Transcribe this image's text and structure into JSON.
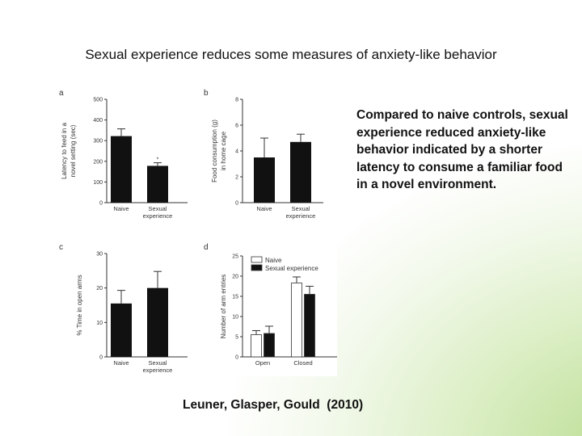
{
  "slide": {
    "title": "Sexual experience reduces some measures of anxiety-like behavior",
    "caption": "Compared to naive controls, sexual experience reduced anxiety-like behavior indicated by a shorter latency to consume a familiar food in a novel environment.",
    "citation": "Leuner, Glasper, Gould  (2010)"
  },
  "colors": {
    "bar": "#111111",
    "axis": "#333333",
    "open_bar": "#ffffff"
  },
  "chart_data": [
    {
      "panel": "a",
      "type": "bar",
      "ylabel": [
        "Latency to feed in a",
        "novel setting (sec)"
      ],
      "ylim": [
        0,
        500
      ],
      "yticks": [
        0,
        100,
        200,
        300,
        400,
        500
      ],
      "categories": [
        [
          "Naive"
        ],
        [
          "Sexual",
          "experience"
        ]
      ],
      "values": [
        322,
        178
      ],
      "errors": [
        35,
        15
      ],
      "annotations": [
        "",
        "*"
      ]
    },
    {
      "panel": "b",
      "type": "bar",
      "ylabel": [
        "Food consumption (g)",
        "in home cage"
      ],
      "ylim": [
        0,
        8
      ],
      "yticks": [
        0,
        2,
        4,
        6,
        8
      ],
      "categories": [
        [
          "Naive"
        ],
        [
          "Sexual",
          "experience"
        ]
      ],
      "values": [
        3.5,
        4.7
      ],
      "errors": [
        1.5,
        0.6
      ],
      "annotations": [
        "",
        ""
      ]
    },
    {
      "panel": "c",
      "type": "bar",
      "ylabel": [
        "% Time in open arms"
      ],
      "ylim": [
        0,
        30
      ],
      "yticks": [
        0,
        10,
        20,
        30
      ],
      "categories": [
        [
          "Naive"
        ],
        [
          "Sexual",
          "experience"
        ]
      ],
      "values": [
        15.5,
        20
      ],
      "errors": [
        3.8,
        4.8
      ],
      "annotations": [
        "",
        ""
      ]
    },
    {
      "panel": "d",
      "type": "bar",
      "ylabel": [
        "Number of arm entries"
      ],
      "ylim": [
        0,
        25
      ],
      "yticks": [
        0,
        5,
        10,
        15,
        20,
        25
      ],
      "categories": [
        [
          "Open"
        ],
        [
          "Closed"
        ]
      ],
      "series": [
        {
          "name": "Naive",
          "values": [
            5.5,
            18.3
          ],
          "errors": [
            1.0,
            1.5
          ]
        },
        {
          "name": "Sexual experience",
          "values": [
            5.8,
            15.5
          ],
          "errors": [
            1.8,
            2.0
          ]
        }
      ],
      "legend": "top-left"
    }
  ]
}
